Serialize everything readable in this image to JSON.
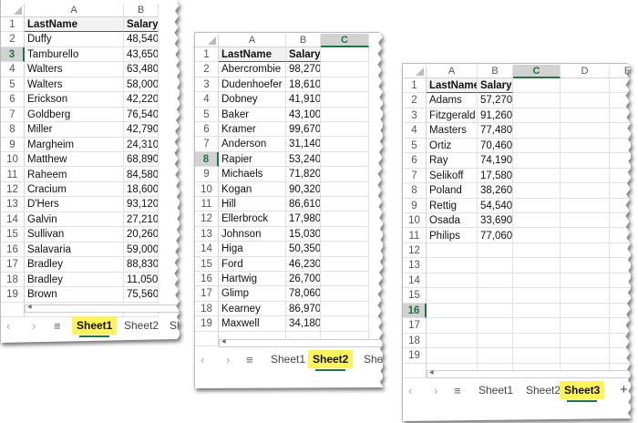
{
  "accent": "#217346",
  "highlight": "#fef35a",
  "sheets": [
    {
      "columns": [
        "A",
        "B"
      ],
      "selected_column": null,
      "selected_row": 3,
      "rows_visible": 19,
      "header": [
        "LastName",
        "Salary"
      ],
      "data": [
        [
          "Duffy",
          "48,540"
        ],
        [
          "Tamburello",
          "43,650"
        ],
        [
          "Walters",
          "63,480"
        ],
        [
          "Walters",
          "58,000"
        ],
        [
          "Erickson",
          "42,220"
        ],
        [
          "Goldberg",
          "76,540"
        ],
        [
          "Miller",
          "42,790"
        ],
        [
          "Margheim",
          "24,310"
        ],
        [
          "Matthew",
          "68,890"
        ],
        [
          "Raheem",
          "84,580"
        ],
        [
          "Cracium",
          "18,600"
        ],
        [
          "D'Hers",
          "93,120"
        ],
        [
          "Galvin",
          "27,210"
        ],
        [
          "Sullivan",
          "20,260"
        ],
        [
          "Salavaria",
          "59,000"
        ],
        [
          "Bradley",
          "88,830"
        ],
        [
          "Bradley",
          "11,050"
        ],
        [
          "Brown",
          "75,560"
        ]
      ],
      "tabs": [
        "Sheet1",
        "Sheet2",
        "Sh"
      ],
      "active_tab": 0
    },
    {
      "columns": [
        "A",
        "B",
        "C"
      ],
      "selected_column": "C",
      "selected_row": 8,
      "rows_visible": 19,
      "header": [
        "LastName",
        "Salary"
      ],
      "data": [
        [
          "Abercrombie",
          "98,270"
        ],
        [
          "Dudenhoefer",
          "18,610"
        ],
        [
          "Dobney",
          "41,910"
        ],
        [
          "Baker",
          "43,100"
        ],
        [
          "Kramer",
          "99,670"
        ],
        [
          "Anderson",
          "31,140"
        ],
        [
          "Rapier",
          "53,240"
        ],
        [
          "Michaels",
          "71,820"
        ],
        [
          "Kogan",
          "90,320"
        ],
        [
          "Hill",
          "86,610"
        ],
        [
          "Ellerbrock",
          "17,980"
        ],
        [
          "Johnson",
          "15,030"
        ],
        [
          "Higa",
          "50,350"
        ],
        [
          "Ford",
          "46,230"
        ],
        [
          "Hartwig",
          "26,700"
        ],
        [
          "Glimp",
          "78,060"
        ],
        [
          "Kearney",
          "86,970"
        ],
        [
          "Maxwell",
          "34,180"
        ]
      ],
      "tabs": [
        "Sheet1",
        "Sheet2",
        "She"
      ],
      "active_tab": 1
    },
    {
      "columns": [
        "A",
        "B",
        "C",
        "D",
        "E"
      ],
      "selected_column": "C",
      "selected_row": 16,
      "rows_visible": 19,
      "header": [
        "LastName",
        "Salary"
      ],
      "data": [
        [
          "Adams",
          "57,270"
        ],
        [
          "Fitzgerald",
          "91,260"
        ],
        [
          "Masters",
          "77,480"
        ],
        [
          "Ortiz",
          "70,460"
        ],
        [
          "Ray",
          "74,190"
        ],
        [
          "Selikoff",
          "17,580"
        ],
        [
          "Poland",
          "38,260"
        ],
        [
          "Rettig",
          "54,540"
        ],
        [
          "Osada",
          "33,690"
        ],
        [
          "Philips",
          "77,060"
        ]
      ],
      "tabs": [
        "Sheet1",
        "Sheet2",
        "Sheet3"
      ],
      "active_tab": 2,
      "add_sheet_label": "+"
    }
  ],
  "nav": {
    "prev": "‹",
    "next": "›",
    "menu": "≡"
  }
}
